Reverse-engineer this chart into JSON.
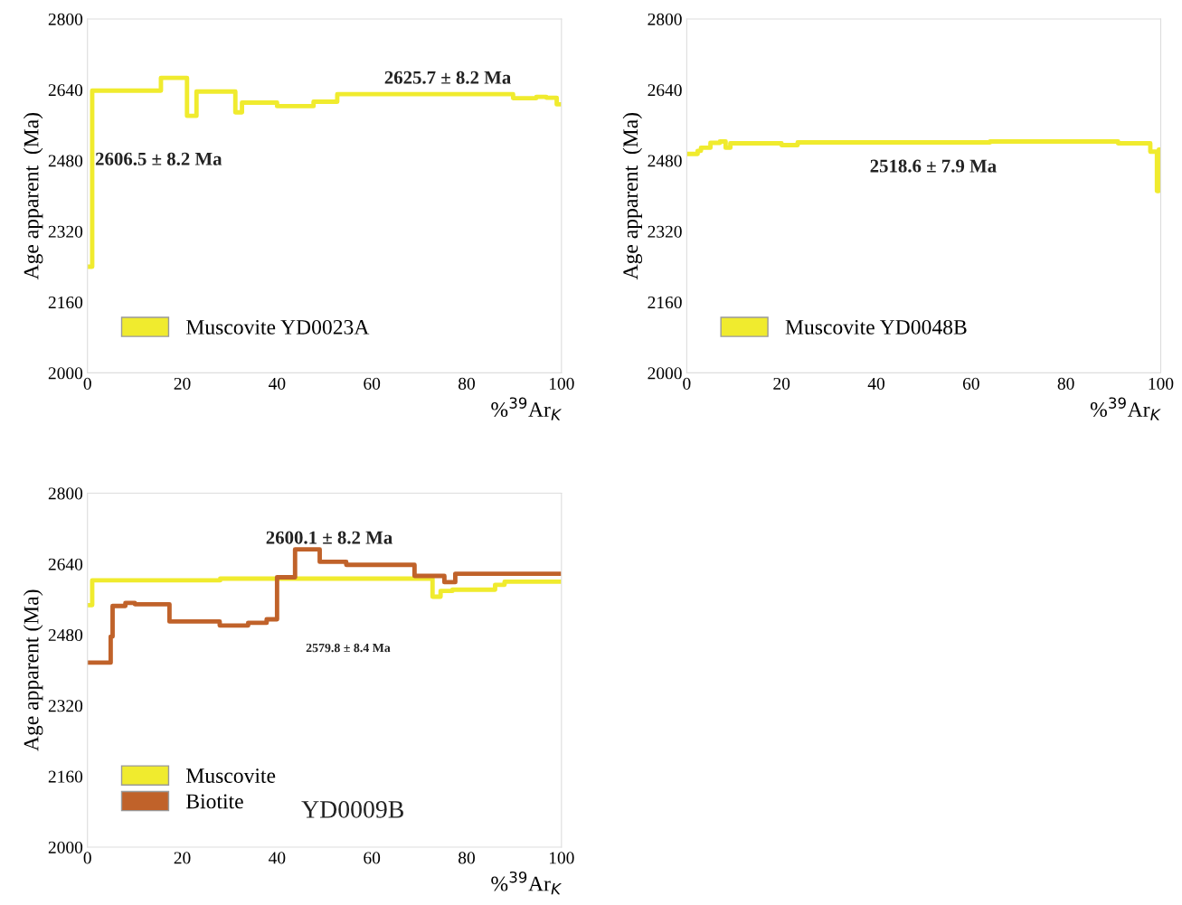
{
  "chart_data": [
    {
      "type": "step",
      "xlabel": "%$^{39}$Ar$_{K}$",
      "ylabel": "Age apparent  (Ma)",
      "xlim": [
        0,
        100
      ],
      "xticks": [
        0,
        20,
        40,
        60,
        80,
        100
      ],
      "ylim": [
        2000,
        2800
      ],
      "yticks": [
        2000,
        2160,
        2320,
        2480,
        2640,
        2800
      ],
      "legend": "bottom left",
      "grid": false,
      "series": [
        {
          "name": "Muscovite YD0023A",
          "color": "#f0eb2e",
          "x": [
            0,
            1,
            15.5,
            21,
            23,
            31.2,
            32.6,
            40,
            47.7,
            52.7,
            89.8,
            94.7,
            96.8,
            99,
            100
          ],
          "values": [
            2240,
            2638,
            2667,
            2581,
            2636,
            2589,
            2611,
            2603,
            2613,
            2630,
            2621,
            2624,
            2622,
            2607,
            2607
          ]
        }
      ],
      "annotations": [
        "2625.7 ± 8.2 Ma",
        "2606.5 ± 8.2 Ma"
      ]
    },
    {
      "type": "step",
      "xlabel": "%$^{39}$Ar$_{K}$",
      "ylabel": "Age apparent  (Ma)",
      "xlim": [
        0,
        100
      ],
      "xticks": [
        0,
        20,
        40,
        60,
        80,
        100
      ],
      "ylim": [
        2000,
        2800
      ],
      "yticks": [
        2000,
        2160,
        2320,
        2480,
        2640,
        2800
      ],
      "legend": "bottom left",
      "grid": false,
      "series": [
        {
          "name": "Muscovite YD0048B",
          "color": "#f0eb2e",
          "x": [
            0,
            2.3,
            3,
            5,
            7,
            8.2,
            9.2,
            20,
            23.4,
            64,
            91,
            97.8,
            99.2,
            99.6,
            100
          ],
          "values": [
            2495,
            2502,
            2509,
            2520,
            2523,
            2509,
            2519,
            2515,
            2521,
            2523,
            2519,
            2500,
            2411,
            2505,
            2505
          ]
        }
      ],
      "annotations": [
        "2518.6 ± 7.9 Ma"
      ]
    },
    {
      "type": "step",
      "xlabel": "%$^{39}$Ar$_{K}$",
      "ylabel": "Age apparent (Ma)",
      "xlim": [
        0,
        100
      ],
      "xticks": [
        0,
        20,
        40,
        60,
        80,
        100
      ],
      "ylim": [
        2000,
        2800
      ],
      "yticks": [
        2000,
        2160,
        2320,
        2480,
        2640,
        2800
      ],
      "legend": "bottom left",
      "grid": false,
      "series": [
        {
          "name": "Muscovite",
          "color": "#f0eb2e",
          "x": [
            0,
            1,
            28,
            72.8,
            74.5,
            77,
            86,
            88,
            100
          ],
          "values": [
            2547,
            2603,
            2607,
            2566,
            2579,
            2582,
            2593,
            2600,
            2600
          ]
        },
        {
          "name": "Biotite",
          "color": "#c0622a",
          "x": [
            0,
            4.9,
            5.3,
            8,
            10,
            17.3,
            27.9,
            33.9,
            37.8,
            40,
            43.8,
            49,
            54.6,
            69,
            75.3,
            77.6,
            100
          ],
          "values": [
            2417,
            2476,
            2545,
            2552,
            2549,
            2510,
            2501,
            2507,
            2515,
            2610,
            2673,
            2645,
            2638,
            2613,
            2599,
            2618,
            2618
          ]
        }
      ],
      "annotations": [
        "2600.1 ± 8.2 Ma",
        "2579.8 ± 8.4 Ma",
        "YD0009B"
      ]
    }
  ]
}
